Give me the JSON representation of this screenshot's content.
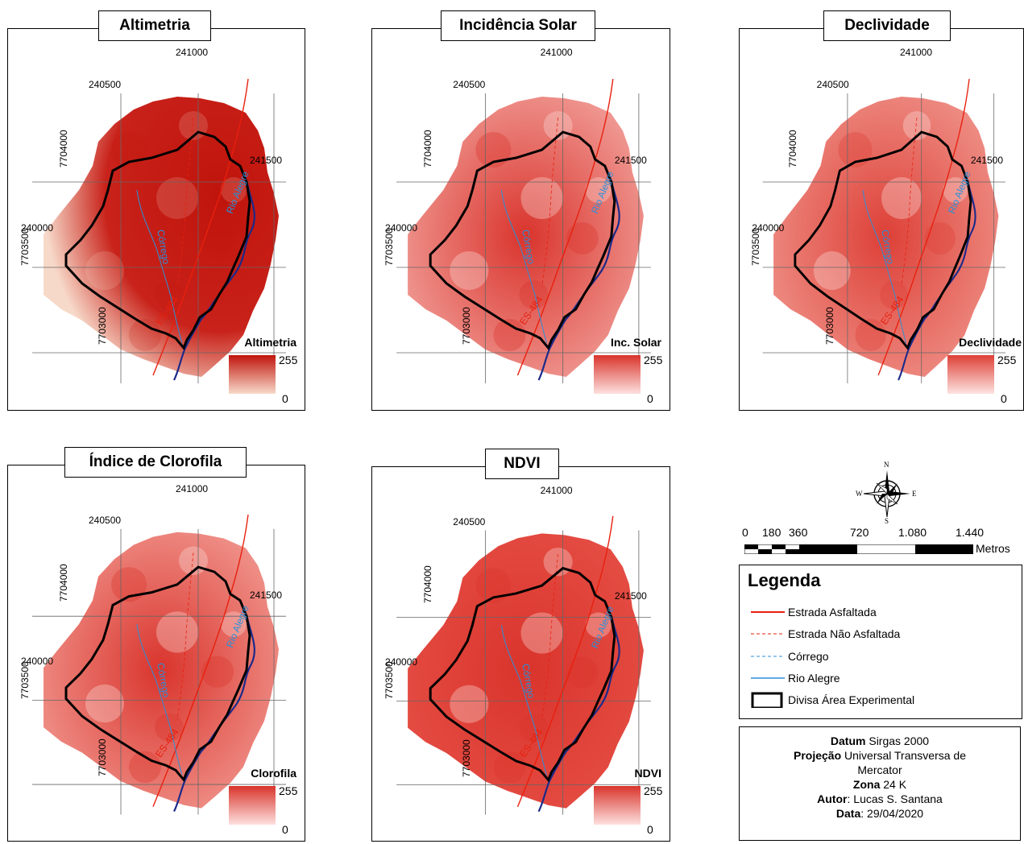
{
  "maps": [
    {
      "id": "altimetria",
      "title": "Altimetria",
      "legend_title": "Altimetria",
      "legend_max": "255",
      "legend_min": "0",
      "dark": "#c0140c",
      "light": "#f7d9c9",
      "fill": "#c8221a"
    },
    {
      "id": "incidencia",
      "title": "Incidência Solar",
      "legend_title": "Inc. Solar",
      "legend_max": "255",
      "legend_min": "0",
      "dark": "#d9342c",
      "light": "#fde0de",
      "fill": "#f7b8b3"
    },
    {
      "id": "declividade",
      "title": "Declividade",
      "legend_title": "Declividade",
      "legend_max": "255",
      "legend_min": "0",
      "dark": "#dd4037",
      "light": "#fde3e0",
      "fill": "#f3a59c"
    },
    {
      "id": "clorofila",
      "title": "Índice de Clorofila",
      "legend_title": "Clorofila",
      "legend_max": "255",
      "legend_min": "0",
      "dark": "#d9342c",
      "light": "#fde0de",
      "fill": "#f6aea6"
    },
    {
      "id": "ndvi",
      "title": "NDVI",
      "legend_title": "NDVI",
      "legend_max": "255",
      "legend_min": "0",
      "dark": "#d9342c",
      "light": "#fde0de",
      "fill": "#e8544a"
    }
  ],
  "coords": {
    "x241000": "241000",
    "x240500": "240500",
    "x241500": "241500",
    "x240000": "240000",
    "y7704000": "7704000",
    "y7703500": "7703500",
    "y7703000": "7703000"
  },
  "map_labels": {
    "rio": "Rio Alegre",
    "corrego": "Córrego",
    "road": "ES-484"
  },
  "compass": {
    "n": "N",
    "s": "S",
    "e": "E",
    "w": "W"
  },
  "scale": {
    "ticks": [
      "0",
      "180",
      "360",
      "720",
      "1.080",
      "1.440"
    ],
    "unit": "Metros"
  },
  "legend": {
    "title": "Legenda",
    "items": [
      {
        "label": "Estrada Asfaltada",
        "color": "#e8200e"
      },
      {
        "label": "Estrada Não Asfaltada",
        "color": "#e8200e"
      },
      {
        "label": "Córrego",
        "color": "#2b8fd9"
      },
      {
        "label": "Rio Alegre",
        "color": "#2b8fd9"
      },
      {
        "label": "Divisa Área Experimental",
        "color": "#000000"
      }
    ]
  },
  "info": {
    "datum_label": "Datum",
    "datum_value": "Sirgas 2000",
    "proj_label": "Projeção",
    "proj_value": "Universal Transversa de",
    "proj_value2": "Mercator",
    "zona_label": "Zona",
    "zona_value": "24 K",
    "autor_label": "Autor",
    "autor_value": ": Lucas S. Santana",
    "data_label": "Data",
    "data_value": ": 29/04/2020"
  }
}
